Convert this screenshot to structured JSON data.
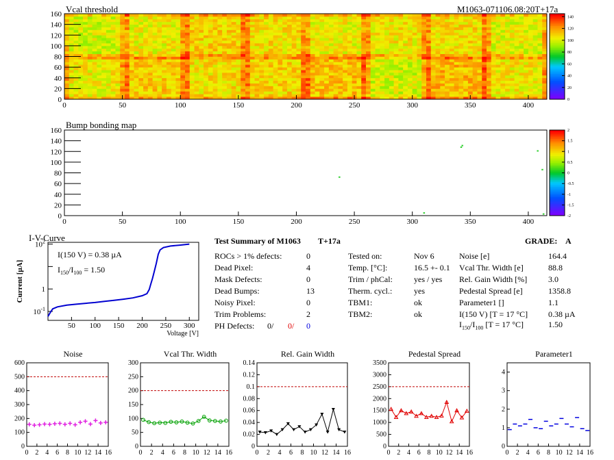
{
  "header": {
    "vcal_title": "Vcal threshold",
    "module_id": "M1063-071106.08:20T+17a",
    "bump_title": "Bump bonding map"
  },
  "colors": {
    "heat_low": "#7d00ff",
    "heat_mid": "#00c800",
    "heat_high": "#ff0000",
    "noise": "#e020e0",
    "vcal": "#00a000",
    "gain": "#000000",
    "pedestal": "#e00000",
    "param": "#0000e0",
    "limit": "#c00000",
    "iv": "#0000d0"
  },
  "chart_data": [
    {
      "type": "heatmap",
      "title": "Vcal threshold",
      "xlim": [
        0,
        416
      ],
      "ylim": [
        0,
        160
      ],
      "xticks": [
        "0",
        "50",
        "100",
        "150",
        "200",
        "250",
        "300",
        "350",
        "400"
      ],
      "yticks": [
        "0",
        "20",
        "40",
        "60",
        "80",
        "100",
        "120",
        "140",
        "160"
      ],
      "colorbar": [
        "0",
        "20",
        "40",
        "60",
        "80",
        "100",
        "120",
        "140"
      ],
      "zlim": [
        0,
        145
      ]
    },
    {
      "type": "heatmap",
      "title": "Bump bonding map",
      "xlim": [
        0,
        416
      ],
      "ylim": [
        0,
        160
      ],
      "xticks": [
        "0",
        "50",
        "100",
        "150",
        "200",
        "250",
        "300",
        "350",
        "400"
      ],
      "yticks": [
        "0",
        "20",
        "40",
        "60",
        "80",
        "100",
        "120",
        "140",
        "160"
      ],
      "colorbar": [
        "2",
        "1.5",
        "1",
        "0.5",
        "0",
        "-0.5",
        "-1",
        "-1.5",
        "-2"
      ],
      "points": [
        [
          237,
          72
        ],
        [
          342,
          128
        ],
        [
          343,
          131
        ],
        [
          408,
          121
        ],
        [
          412,
          86
        ],
        [
          413,
          3
        ],
        [
          310,
          5
        ]
      ]
    },
    {
      "type": "line",
      "title": "I-V-Curve",
      "xlabel": "Voltage [V]",
      "ylabel": "Current [µA]",
      "log_y": true,
      "xlim": [
        0,
        320
      ],
      "xticks": [
        "50",
        "100",
        "150",
        "200",
        "250",
        "300"
      ],
      "yticks": [
        "10",
        "1"
      ],
      "annotation1": "I(150 V) = 0.38 µA",
      "annotation2_a": "I",
      "annotation2_b": "150",
      "annotation2_c": "/I",
      "annotation2_d": "100",
      "annotation2_e": " =  1.50",
      "x": [
        0,
        5,
        10,
        20,
        40,
        60,
        80,
        100,
        120,
        140,
        160,
        180,
        200,
        210,
        215,
        218,
        222,
        226,
        230,
        234,
        238,
        245,
        260,
        280,
        300
      ],
      "y": [
        0.06,
        0.09,
        0.13,
        0.16,
        0.19,
        0.21,
        0.23,
        0.25,
        0.28,
        0.31,
        0.35,
        0.4,
        0.5,
        0.62,
        0.95,
        1.6,
        3.0,
        6.5,
        14,
        35,
        55,
        70,
        82,
        90,
        100
      ]
    },
    {
      "type": "scatter",
      "title": "Noise",
      "x": [
        0,
        1,
        2,
        3,
        4,
        5,
        6,
        7,
        8,
        9,
        10,
        11,
        12,
        13,
        14,
        15
      ],
      "y": [
        158,
        152,
        155,
        160,
        158,
        162,
        165,
        158,
        165,
        155,
        172,
        180,
        160,
        185,
        168,
        172
      ],
      "limit": 500,
      "ylim": [
        0,
        600
      ],
      "yticks": [
        "0",
        "100",
        "200",
        "300",
        "400",
        "500",
        "600"
      ]
    },
    {
      "type": "line",
      "title": "Vcal Thr. Width",
      "x": [
        0,
        1,
        2,
        3,
        4,
        5,
        6,
        7,
        8,
        9,
        10,
        11,
        12,
        13,
        14,
        15
      ],
      "y": [
        95,
        87,
        83,
        85,
        84,
        88,
        86,
        89,
        85,
        82,
        91,
        106,
        93,
        91,
        89,
        92
      ],
      "limit": 200,
      "ylim": [
        0,
        300
      ],
      "yticks": [
        "0",
        "50",
        "100",
        "150",
        "200",
        "250",
        "300"
      ]
    },
    {
      "type": "line",
      "title": "Rel. Gain Width",
      "x": [
        0,
        1,
        2,
        3,
        4,
        5,
        6,
        7,
        8,
        9,
        10,
        11,
        12,
        13,
        14,
        15
      ],
      "y": [
        0.024,
        0.023,
        0.026,
        0.02,
        0.028,
        0.038,
        0.028,
        0.033,
        0.024,
        0.028,
        0.036,
        0.054,
        0.024,
        0.062,
        0.028,
        0.024
      ],
      "limit": 0.1,
      "ylim": [
        0,
        0.14
      ],
      "yticks": [
        "0",
        "0.02",
        "0.04",
        "0.06",
        "0.08",
        "0.1",
        "0.12",
        "0.14"
      ]
    },
    {
      "type": "line",
      "title": "Pedestal Spread",
      "x": [
        0,
        1,
        2,
        3,
        4,
        5,
        6,
        7,
        8,
        9,
        10,
        11,
        12,
        13,
        14,
        15
      ],
      "y": [
        1560,
        1220,
        1500,
        1380,
        1450,
        1270,
        1380,
        1220,
        1270,
        1220,
        1280,
        1850,
        1040,
        1500,
        1200,
        1480
      ],
      "limit": 2500,
      "ylim": [
        0,
        3500
      ],
      "yticks": [
        "0",
        "500",
        "1000",
        "1500",
        "2000",
        "2500",
        "3000",
        "3500"
      ]
    },
    {
      "type": "scatter",
      "title": "Parameter1",
      "x": [
        0,
        1,
        2,
        3,
        4,
        5,
        6,
        7,
        8,
        9,
        10,
        11,
        12,
        13,
        14,
        15
      ],
      "y": [
        0.9,
        1.2,
        1.1,
        1.2,
        1.45,
        1.0,
        0.95,
        1.35,
        1.1,
        1.2,
        1.5,
        1.2,
        1.05,
        1.55,
        0.95,
        0.85
      ],
      "ylim": [
        0,
        4.5
      ],
      "yticks": [
        "0",
        "1",
        "2",
        "3",
        "4"
      ]
    }
  ],
  "bottom_xticks": [
    "0",
    "2",
    "4",
    "6",
    "8",
    "10",
    "12",
    "14",
    "16"
  ],
  "summary": {
    "title": "Test Summary of M1063",
    "tag": "T+17a",
    "grade_label": "GRADE:",
    "grade": "A",
    "left": [
      {
        "label": "ROCs > 1% defects:",
        "value": "0"
      },
      {
        "label": "Dead Pixel:",
        "value": "4"
      },
      {
        "label": "Mask Defects:",
        "value": "0"
      },
      {
        "label": "Dead Bumps:",
        "value": "13"
      },
      {
        "label": "Noisy Pixel:",
        "value": "0"
      },
      {
        "label": "Trim Problems:",
        "value": "2"
      }
    ],
    "ph_label": "PH Defects:",
    "ph_values": [
      "0/",
      "0/",
      "0"
    ],
    "middle": [
      {
        "label": "Tested on:",
        "value": "Nov 6"
      },
      {
        "label": "Temp. [°C]:",
        "value": "16.5 +- 0.1"
      },
      {
        "label": "Trim / phCal:",
        "value": "yes / yes"
      },
      {
        "label": "Therm. cycl.:",
        "value": "yes"
      },
      {
        "label": "TBM1:",
        "value": "ok"
      },
      {
        "label": "TBM2:",
        "value": "ok"
      }
    ],
    "right": [
      {
        "label": "Noise [e]",
        "value": "164.4"
      },
      {
        "label": "Vcal Thr. Width [e]",
        "value": "88.8"
      },
      {
        "label": "Rel. Gain Width [%]",
        "value": "3.0"
      },
      {
        "label": "Pedestal Spread [e]",
        "value": "1358.8"
      },
      {
        "label": "Parameter1 []",
        "value": "1.1"
      },
      {
        "label": "I(150 V) [T = 17 °C]",
        "value": "0.38 µA"
      }
    ],
    "ratio_label_a": "I",
    "ratio_label_b": "150",
    "ratio_label_c": "/I",
    "ratio_label_d": "100",
    "ratio_label_e": "  [T = 17 °C]",
    "ratio_value": "1.50"
  }
}
